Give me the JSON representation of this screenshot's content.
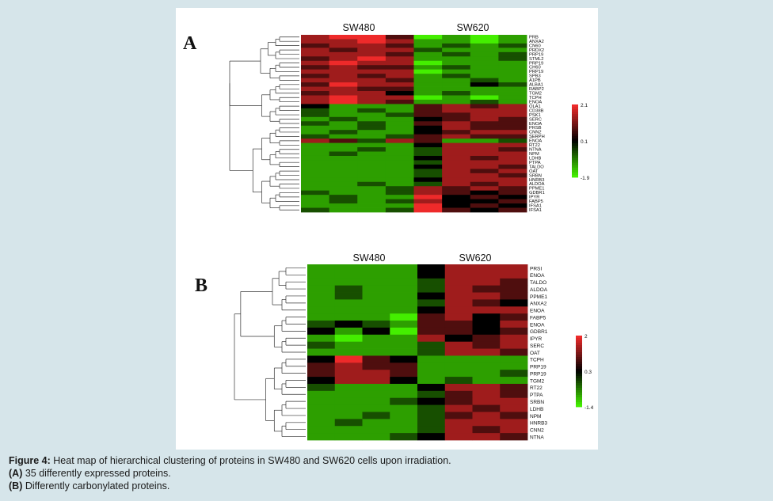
{
  "colors": {
    "high": "#ee2a2a",
    "mid": "#000000",
    "low": "#44ee00"
  },
  "panels": [
    {
      "letter": "A",
      "groups": [
        "SW480",
        "SW620"
      ],
      "scale_max": "2.1",
      "scale_mid": "0.1",
      "scale_min": "-1.9",
      "rows": [
        "PRB",
        "ANXA2",
        "CN60",
        "PRDX2",
        "PRP19",
        "STML2",
        "PRP19",
        "CH60",
        "PRP19",
        "SPB3",
        "A1PB",
        "ALBA1",
        "RABP2",
        "TGM2",
        "TCPH",
        "ENOA",
        "OLA1",
        "CD38B",
        "PSK1",
        "SERC",
        "ENOA",
        "PRSB",
        "CNN2",
        "SERPH",
        "ENOA",
        "RT22",
        "NTNA",
        "NPM",
        "LDHB",
        "PTPA",
        "TALDO",
        "OAT",
        "SRBN",
        "HNRB3",
        "ALDOA",
        "PPME1",
        "GDBR1",
        "IPYR",
        "FABP5",
        "IFSA1",
        "IFSA1"
      ],
      "cells": [
        [
          2,
          3,
          3,
          1,
          -3,
          -2,
          -3,
          -2
        ],
        [
          2,
          2,
          3,
          2,
          -2,
          -2,
          -3,
          -2
        ],
        [
          1,
          2,
          2,
          1,
          -2,
          -1,
          -2,
          -1
        ],
        [
          2,
          1,
          2,
          2,
          -1,
          -2,
          -2,
          -2
        ],
        [
          2,
          2,
          2,
          1,
          -2,
          -1,
          -2,
          -1
        ],
        [
          1,
          2,
          3,
          2,
          -2,
          -2,
          -2,
          -1
        ],
        [
          2,
          3,
          2,
          2,
          -3,
          -2,
          -2,
          -2
        ],
        [
          1,
          2,
          1,
          1,
          -2,
          -1,
          -2,
          -2
        ],
        [
          2,
          2,
          2,
          2,
          -3,
          -2,
          -2,
          -2
        ],
        [
          1,
          2,
          1,
          2,
          -2,
          -1,
          -2,
          -2
        ],
        [
          2,
          2,
          2,
          1,
          -2,
          -2,
          -1,
          -2
        ],
        [
          1,
          3,
          2,
          2,
          -2,
          -2,
          0,
          -1
        ],
        [
          2,
          2,
          1,
          1,
          -2,
          -2,
          -2,
          -2
        ],
        [
          1,
          2,
          2,
          0,
          -2,
          -1,
          -2,
          -2
        ],
        [
          2,
          3,
          2,
          2,
          -3,
          -2,
          -3,
          -2
        ],
        [
          2,
          3,
          2,
          1,
          -2,
          -2,
          -1,
          -2
        ],
        [
          0,
          -2,
          -2,
          -2,
          1,
          2,
          1,
          2
        ],
        [
          -1,
          -2,
          -1,
          -2,
          1,
          2,
          2,
          2
        ],
        [
          -1,
          -2,
          -2,
          -1,
          1,
          1,
          2,
          2
        ],
        [
          -2,
          -1,
          -2,
          -2,
          0,
          1,
          2,
          1
        ],
        [
          -1,
          -2,
          -1,
          -2,
          1,
          2,
          1,
          1
        ],
        [
          -2,
          -2,
          -1,
          -2,
          0,
          2,
          1,
          1
        ],
        [
          -2,
          -1,
          -2,
          -2,
          0,
          1,
          2,
          2
        ],
        [
          -1,
          -2,
          -2,
          -1,
          1,
          2,
          1,
          1
        ],
        [
          2,
          1,
          -1,
          2,
          1,
          -2,
          -2,
          -1
        ],
        [
          -2,
          -2,
          -2,
          -2,
          0,
          2,
          2,
          2
        ],
        [
          -2,
          -2,
          -1,
          -2,
          -1,
          2,
          2,
          1
        ],
        [
          -2,
          -1,
          -2,
          -2,
          -1,
          2,
          2,
          2
        ],
        [
          -2,
          -2,
          -2,
          -2,
          0,
          2,
          1,
          2
        ],
        [
          -2,
          -2,
          -2,
          -2,
          -1,
          2,
          2,
          2
        ],
        [
          -2,
          -2,
          -2,
          -2,
          0,
          2,
          2,
          1
        ],
        [
          -2,
          -2,
          -2,
          -2,
          -1,
          2,
          1,
          2
        ],
        [
          -2,
          -2,
          -2,
          -2,
          -1,
          2,
          2,
          1
        ],
        [
          -2,
          -2,
          -2,
          -2,
          0,
          2,
          2,
          2
        ],
        [
          -2,
          -2,
          -1,
          -2,
          -1,
          2,
          1,
          2
        ],
        [
          -2,
          -2,
          -2,
          -1,
          2,
          1,
          2,
          1
        ],
        [
          -1,
          -2,
          -2,
          -1,
          2,
          1,
          0,
          1
        ],
        [
          -2,
          -1,
          -2,
          -2,
          3,
          0,
          1,
          0
        ],
        [
          -2,
          -1,
          -2,
          -1,
          2,
          0,
          0,
          1
        ],
        [
          -2,
          -2,
          -2,
          -2,
          3,
          0,
          1,
          0
        ],
        [
          -1,
          -2,
          -2,
          -1,
          3,
          1,
          0,
          1
        ]
      ]
    },
    {
      "letter": "B",
      "groups": [
        "SW480",
        "SW620"
      ],
      "scale_max": "2",
      "scale_mid": "0.3",
      "scale_min": "-1.4",
      "rows": [
        "PRSI",
        "ENOA",
        "TALDO",
        "ALDOA",
        "PPME1",
        "ANXA2",
        "ENOA",
        "FABP5",
        "ENOA",
        "GDBR1",
        "IPYR",
        "SERC",
        "OAT",
        "TCPH",
        "PRP19",
        "PRP19",
        "TGM2",
        "RT22",
        "PTPA",
        "SRBN",
        "LDHB",
        "NPM",
        "HNRB3",
        "CNN2",
        "NTNA"
      ],
      "cells": [
        [
          -2,
          -2,
          -2,
          -2,
          0,
          2,
          2,
          2
        ],
        [
          -2,
          -2,
          -2,
          -2,
          0,
          2,
          2,
          2
        ],
        [
          -2,
          -2,
          -2,
          -2,
          -1,
          2,
          2,
          1
        ],
        [
          -2,
          -1,
          -2,
          -2,
          -1,
          2,
          1,
          1
        ],
        [
          -2,
          -1,
          -2,
          -2,
          0,
          2,
          2,
          1
        ],
        [
          -2,
          -2,
          -2,
          -2,
          -1,
          2,
          1,
          0
        ],
        [
          -2,
          -2,
          -2,
          -2,
          0,
          2,
          2,
          2
        ],
        [
          -2,
          -2,
          -2,
          -3,
          1,
          2,
          0,
          1
        ],
        [
          -1,
          0,
          -1,
          -2,
          1,
          1,
          0,
          2
        ],
        [
          0,
          -2,
          0,
          -3,
          1,
          1,
          0,
          1
        ],
        [
          -2,
          -3,
          -2,
          -2,
          2,
          0,
          1,
          2
        ],
        [
          -1,
          -2,
          -2,
          -2,
          -1,
          2,
          1,
          2
        ],
        [
          -2,
          -2,
          -2,
          -2,
          -1,
          2,
          2,
          1
        ],
        [
          0,
          3,
          1,
          0,
          -2,
          -2,
          -2,
          -2
        ],
        [
          1,
          2,
          1,
          1,
          -2,
          -2,
          -2,
          -2
        ],
        [
          1,
          2,
          2,
          1,
          -2,
          -2,
          -2,
          -1
        ],
        [
          0,
          2,
          2,
          0,
          -2,
          -1,
          -2,
          -2
        ],
        [
          -1,
          -2,
          -2,
          -2,
          0,
          2,
          2,
          1
        ],
        [
          -2,
          -2,
          -2,
          -2,
          -1,
          1,
          2,
          1
        ],
        [
          -2,
          -2,
          -2,
          -1,
          0,
          1,
          2,
          2
        ],
        [
          -2,
          -2,
          -2,
          -2,
          -1,
          2,
          1,
          2
        ],
        [
          -2,
          -2,
          -1,
          -2,
          -1,
          1,
          2,
          1
        ],
        [
          -2,
          -1,
          -2,
          -2,
          -1,
          2,
          2,
          2
        ],
        [
          -2,
          -2,
          -2,
          -2,
          -1,
          2,
          1,
          2
        ],
        [
          -2,
          -2,
          -2,
          -1,
          0,
          2,
          2,
          1
        ]
      ]
    }
  ],
  "caption": {
    "label": "Figure 4:",
    "text": " Heat map of hierarchical clustering of proteins in SW480 and SW620 cells upon irradiation.",
    "a_label": "(A)",
    "a_text": " 35 differently expressed proteins.",
    "b_label": "(B)",
    "b_text": " Differently carbonylated proteins."
  }
}
